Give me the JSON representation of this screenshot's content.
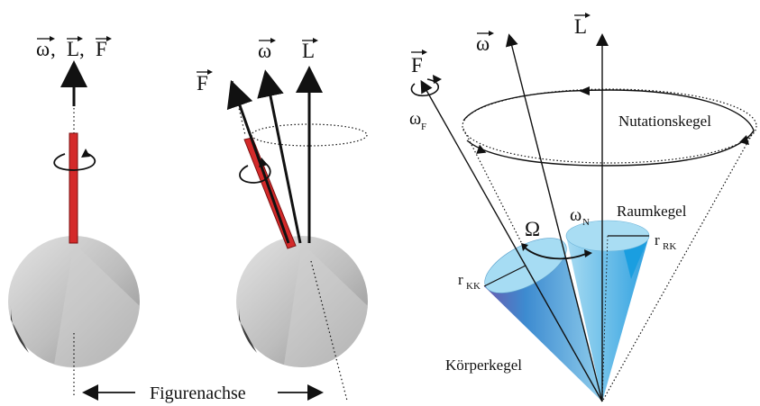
{
  "colors": {
    "rod": "#d42a2a",
    "sphere_light": "#d9d9d9",
    "sphere_dark": "#4a4a4a",
    "cone_light": "#9fd8ef",
    "cone_dark": "#3f86c9",
    "cone_purple": "#5a5aa8",
    "ink": "#111111"
  },
  "left_panel": {
    "label_omega": "ω",
    "label_sep1": ", ",
    "label_L": "L",
    "label_sep2": ", ",
    "label_F": "F"
  },
  "middle_panel": {
    "label_F": "F",
    "label_omega": "ω",
    "label_L": "L"
  },
  "bottom": {
    "figurenachse": "Figurenachse"
  },
  "right_panel": {
    "label_F": "F",
    "label_omega": "ω",
    "label_L": "L",
    "omega_F_main": "ω",
    "omega_F_sub": "F",
    "nutationskegel": "Nutationskegel",
    "omega_N_main": "ω",
    "omega_N_sub": "N",
    "raumkegel": "Raumkegel",
    "Omega": "Ω",
    "r_RK_main": "r",
    "r_RK_sub": "RK",
    "r_KK_main": "r",
    "r_KK_sub": "KK",
    "koerperkegel": "Körperkegel"
  }
}
